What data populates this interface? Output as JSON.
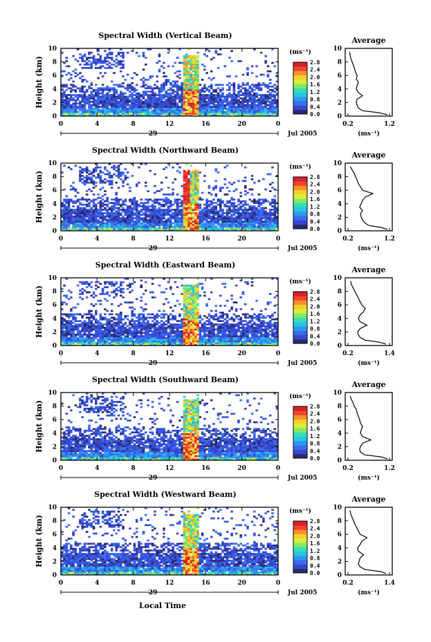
{
  "figure": {
    "bottom_label": "Local Time",
    "date_suffix": "Jul 2005",
    "date_prefix": "29"
  },
  "colorbar": {
    "unit": "(ms⁻¹)",
    "ticks": [
      "2.8",
      "2.4",
      "2.0",
      "1.6",
      "1.2",
      "0.8",
      "0.4",
      "0.0"
    ],
    "colors": [
      "#2b2b6e",
      "#3648d0",
      "#3b6cf0",
      "#2f98ee",
      "#27c7e6",
      "#33dfb4",
      "#86e866",
      "#d7ee3a",
      "#f7ce2b",
      "#f8922a",
      "#f0452c",
      "#d91f2c"
    ]
  },
  "chart_data": [
    {
      "type": "heatmap",
      "title": "Spectral Width (Vertical Beam)",
      "xlabel": "",
      "ylabel": "Height (km)",
      "x_ticks": [
        "0",
        "4",
        "8",
        "12",
        "16",
        "20",
        "0"
      ],
      "xlim": [
        0,
        24
      ],
      "y_ticks": [
        "0",
        "2",
        "4",
        "6",
        "8",
        "10"
      ],
      "ylim": [
        0,
        10
      ],
      "value_unit": "ms⁻¹",
      "value_range": [
        0,
        2.8
      ],
      "profile": {
        "title": "Average",
        "x_ticks": [
          "0.2",
          "1.2"
        ],
        "xlim": [
          0.2,
          1.2
        ],
        "xlabel": "(ms⁻¹)",
        "height": [
          0.2,
          0.5,
          0.8,
          1.2,
          1.6,
          2.0,
          2.5,
          3.0,
          3.5,
          4.0,
          4.5,
          5.0,
          5.5,
          6.0,
          6.5,
          7.0,
          7.5,
          8.0,
          8.5,
          9.0,
          9.5
        ],
        "width": [
          1.15,
          0.95,
          0.55,
          0.45,
          0.42,
          0.4,
          0.42,
          0.55,
          0.45,
          0.4,
          0.42,
          0.45,
          0.4,
          0.42,
          0.38,
          0.36,
          0.33,
          0.3,
          0.27,
          0.25,
          0.24
        ]
      }
    },
    {
      "type": "heatmap",
      "title": "Spectral Width (Northward Beam)",
      "xlabel": "",
      "ylabel": "Height (km)",
      "x_ticks": [
        "0",
        "4",
        "8",
        "12",
        "16",
        "20",
        "0"
      ],
      "xlim": [
        0,
        24
      ],
      "y_ticks": [
        "0",
        "2",
        "4",
        "6",
        "8",
        "10"
      ],
      "ylim": [
        0,
        10
      ],
      "value_unit": "ms⁻¹",
      "value_range": [
        0,
        2.8
      ],
      "profile": {
        "title": "Average",
        "x_ticks": [
          "0.2",
          "1.2"
        ],
        "xlim": [
          0.2,
          1.2
        ],
        "xlabel": "(ms⁻¹)",
        "height": [
          0.2,
          0.5,
          0.8,
          1.2,
          1.6,
          2.0,
          2.5,
          3.0,
          3.5,
          4.0,
          4.5,
          5.0,
          5.5,
          6.0,
          6.5,
          7.0,
          7.5,
          8.0,
          8.5,
          9.0,
          9.5
        ],
        "width": [
          1.15,
          1.0,
          0.7,
          0.6,
          0.55,
          0.52,
          0.5,
          0.55,
          0.48,
          0.52,
          0.55,
          0.62,
          0.8,
          0.55,
          0.5,
          0.45,
          0.42,
          0.38,
          0.35,
          0.3,
          0.25
        ]
      }
    },
    {
      "type": "heatmap",
      "title": "Spectral Width (Eastward Beam)",
      "xlabel": "",
      "ylabel": "Height (km)",
      "x_ticks": [
        "0",
        "4",
        "8",
        "12",
        "16",
        "20",
        "0"
      ],
      "xlim": [
        0,
        24
      ],
      "y_ticks": [
        "0",
        "2",
        "4",
        "6",
        "8",
        "10"
      ],
      "ylim": [
        0,
        10
      ],
      "value_unit": "ms⁻¹",
      "value_range": [
        0,
        2.8
      ],
      "profile": {
        "title": "Average",
        "x_ticks": [
          "0.2",
          "1.4"
        ],
        "xlim": [
          0.2,
          1.4
        ],
        "xlabel": "(ms⁻¹)",
        "height": [
          0.2,
          0.5,
          0.8,
          1.2,
          1.6,
          2.0,
          2.5,
          3.0,
          3.5,
          4.0,
          4.5,
          5.0,
          5.5,
          6.0,
          6.5,
          7.0,
          7.5,
          8.0,
          8.5,
          9.0,
          9.5
        ],
        "width": [
          1.3,
          1.1,
          0.7,
          0.55,
          0.5,
          0.48,
          0.55,
          0.75,
          0.55,
          0.5,
          0.55,
          0.65,
          0.7,
          0.6,
          0.55,
          0.5,
          0.45,
          0.4,
          0.35,
          0.3,
          0.28
        ]
      }
    },
    {
      "type": "heatmap",
      "title": "Spectral Width (Southward Beam)",
      "xlabel": "",
      "ylabel": "Height (km)",
      "x_ticks": [
        "0",
        "4",
        "8",
        "12",
        "16",
        "20",
        "0"
      ],
      "xlim": [
        0,
        24
      ],
      "y_ticks": [
        "0",
        "2",
        "4",
        "6",
        "8",
        "10"
      ],
      "ylim": [
        0,
        10
      ],
      "value_unit": "ms⁻¹",
      "value_range": [
        0,
        2.8
      ],
      "profile": {
        "title": "Average",
        "x_ticks": [
          "0.2",
          "1.2"
        ],
        "xlim": [
          0.2,
          1.2
        ],
        "xlabel": "(ms⁻¹)",
        "height": [
          0.2,
          0.5,
          0.8,
          1.2,
          1.6,
          2.0,
          2.5,
          3.0,
          3.5,
          4.0,
          4.5,
          5.0,
          5.5,
          6.0,
          6.5,
          7.0,
          7.5,
          8.0,
          8.5,
          9.0,
          9.5
        ],
        "width": [
          1.15,
          1.0,
          0.6,
          0.5,
          0.48,
          0.5,
          0.55,
          0.75,
          0.55,
          0.5,
          0.52,
          0.55,
          0.5,
          0.48,
          0.45,
          0.42,
          0.4,
          0.35,
          0.32,
          0.28,
          0.25
        ]
      }
    },
    {
      "type": "heatmap",
      "title": "Spectral Width (Westward Beam)",
      "xlabel": "Local Time",
      "ylabel": "Height (km)",
      "x_ticks": [
        "0",
        "4",
        "8",
        "12",
        "16",
        "20",
        "0"
      ],
      "xlim": [
        0,
        24
      ],
      "y_ticks": [
        "0",
        "2",
        "4",
        "6",
        "8",
        "10"
      ],
      "ylim": [
        0,
        10
      ],
      "value_unit": "ms⁻¹",
      "value_range": [
        0,
        2.8
      ],
      "profile": {
        "title": "Average",
        "x_ticks": [
          "0.2",
          "1.4"
        ],
        "xlim": [
          0.2,
          1.4
        ],
        "xlabel": "(ms⁻¹)",
        "height": [
          0.2,
          0.5,
          0.8,
          1.2,
          1.6,
          2.0,
          2.5,
          3.0,
          3.5,
          4.0,
          4.5,
          5.0,
          5.5,
          6.0,
          6.5,
          7.0,
          7.5,
          8.0,
          8.5,
          9.0,
          9.5
        ],
        "width": [
          1.3,
          1.15,
          0.7,
          0.55,
          0.5,
          0.52,
          0.55,
          0.65,
          0.5,
          0.48,
          0.55,
          0.6,
          0.75,
          0.55,
          0.5,
          0.45,
          0.4,
          0.36,
          0.32,
          0.28,
          0.26
        ]
      }
    }
  ]
}
